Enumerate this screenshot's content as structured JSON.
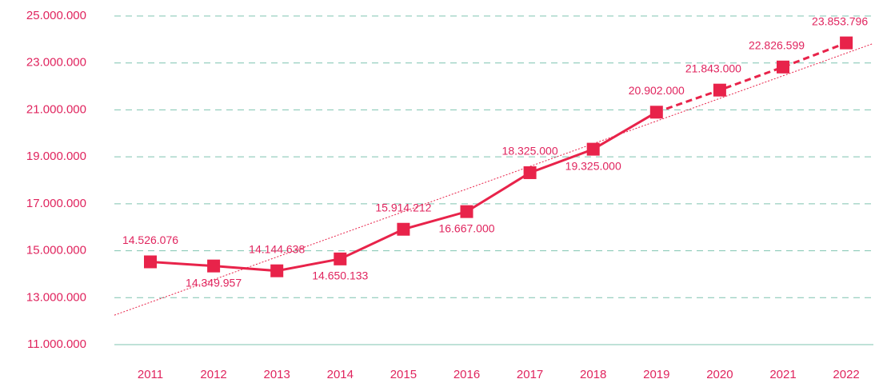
{
  "chart_data": {
    "type": "line",
    "categories": [
      "2011",
      "2012",
      "2013",
      "2014",
      "2015",
      "2016",
      "2017",
      "2018",
      "2019",
      "2020",
      "2021",
      "2022"
    ],
    "series": [
      {
        "color": "#e8234a",
        "values": [
          14526076,
          14349957,
          14144638,
          14650133,
          15914212,
          16667000,
          18325000,
          19325000,
          20902000,
          21843000,
          22826599,
          23853796
        ],
        "value_labels": [
          "14.526.076",
          "14.349.957",
          "14.144.638",
          "14.650.133",
          "15.914.212",
          "16.667.000",
          "18.325.000",
          "19.325.000",
          "20.902.000",
          "21.843.000",
          "22.826.599",
          "23.853.796"
        ]
      }
    ],
    "ylim": [
      11000000,
      25000000
    ],
    "yticks": [
      {
        "value": 11000000,
        "label": "11.000.000"
      },
      {
        "value": 13000000,
        "label": "13.000.000"
      },
      {
        "value": 15000000,
        "label": "15.000.000"
      },
      {
        "value": 17000000,
        "label": "17.000.000"
      },
      {
        "value": 19000000,
        "label": "19.000.000"
      },
      {
        "value": 21000000,
        "label": "21.000.000"
      },
      {
        "value": 23000000,
        "label": "23.000.000"
      },
      {
        "value": 25000000,
        "label": "25.000.000"
      }
    ],
    "grid": true,
    "trendline": true
  }
}
